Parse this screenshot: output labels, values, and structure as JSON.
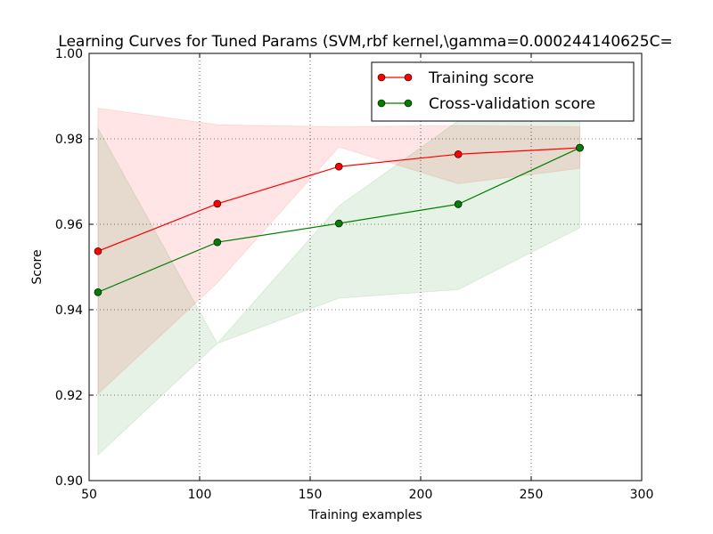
{
  "chart_data": {
    "type": "line",
    "title": "Learning Curves for Tuned Params (SVM,rbf kernel,\\gamma=0.000244140625C=",
    "xlabel": "Training examples",
    "ylabel": "Score",
    "xlim": [
      50,
      300
    ],
    "ylim": [
      0.9,
      1.0
    ],
    "xticks": [
      50,
      100,
      150,
      200,
      250,
      300
    ],
    "yticks": [
      0.9,
      0.92,
      0.94,
      0.96,
      0.98,
      1.0
    ],
    "xtick_labels": [
      "50",
      "100",
      "150",
      "200",
      "250",
      "300"
    ],
    "ytick_labels": [
      "0.90",
      "0.92",
      "0.94",
      "0.96",
      "0.98",
      "1.00"
    ],
    "grid": true,
    "legend_position": "top-right",
    "x": [
      54,
      108,
      163,
      217,
      272
    ],
    "series": [
      {
        "name": "Training score",
        "color": "#ff0000",
        "marker_color": "#ff0000",
        "values": [
          0.9537,
          0.9648,
          0.9735,
          0.9764,
          0.9779
        ],
        "band_upper": [
          0.9872,
          0.9833,
          0.9828,
          0.9831,
          0.9828
        ],
        "band_lower": [
          0.9203,
          0.9463,
          0.9781,
          0.9695,
          0.9731
        ],
        "band_color": "#ff0000"
      },
      {
        "name": "Cross-validation score",
        "color": "#007f00",
        "marker_color": "#007f00",
        "values": [
          0.9441,
          0.9558,
          0.9602,
          0.9647,
          0.9779
        ],
        "band_upper": [
          0.9825,
          0.9321,
          0.9643,
          0.9842,
          0.9842
        ],
        "band_lower": [
          0.906,
          0.9321,
          0.9427,
          0.9447,
          0.9592
        ],
        "band_color": "#007f00"
      }
    ]
  }
}
